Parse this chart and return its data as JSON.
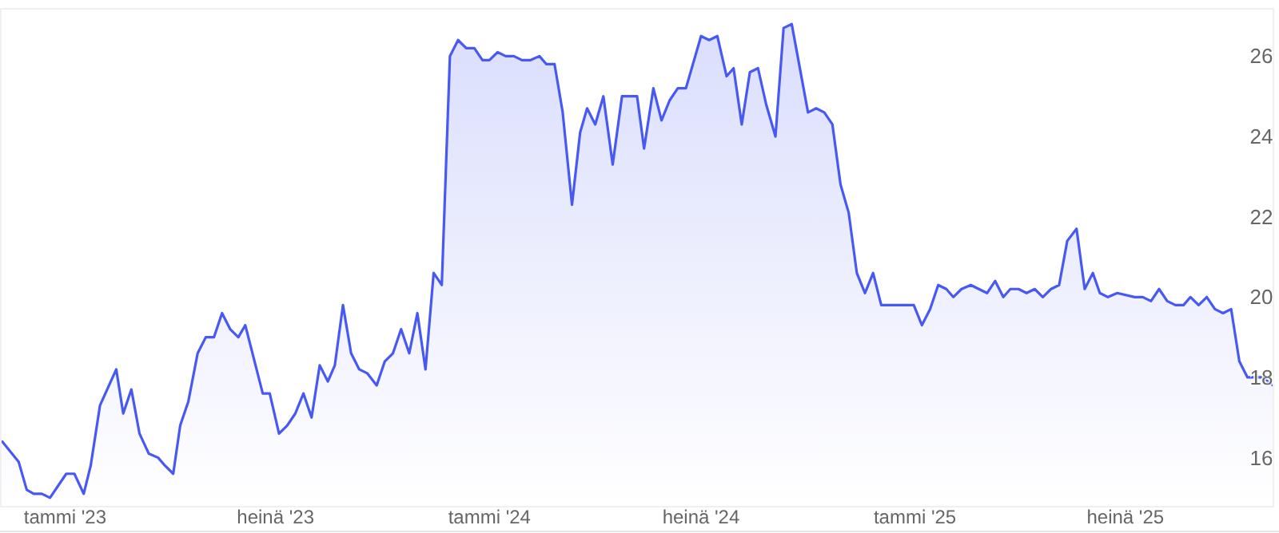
{
  "chart_data": {
    "type": "area",
    "x": [
      "2022-11-08",
      "2022-11-22",
      "2022-11-29",
      "2022-12-05",
      "2022-12-12",
      "2022-12-19",
      "2023-01-02",
      "2023-01-09",
      "2023-01-17",
      "2023-01-23",
      "2023-01-31",
      "2023-02-14",
      "2023-02-20",
      "2023-02-27",
      "2023-03-06",
      "2023-03-14",
      "2023-03-22",
      "2023-03-28",
      "2023-04-04",
      "2023-04-10",
      "2023-04-17",
      "2023-04-25",
      "2023-05-02",
      "2023-05-09",
      "2023-05-16",
      "2023-05-23",
      "2023-05-30",
      "2023-06-05",
      "2023-06-20",
      "2023-06-26",
      "2023-07-04",
      "2023-07-11",
      "2023-07-18",
      "2023-07-25",
      "2023-08-01",
      "2023-08-08",
      "2023-08-15",
      "2023-08-21",
      "2023-08-28",
      "2023-09-04",
      "2023-09-11",
      "2023-09-18",
      "2023-09-26",
      "2023-10-03",
      "2023-10-10",
      "2023-10-17",
      "2023-10-24",
      "2023-10-31",
      "2023-11-07",
      "2023-11-14",
      "2023-11-21",
      "2023-11-28",
      "2023-12-05",
      "2023-12-12",
      "2023-12-19",
      "2023-12-26",
      "2024-01-01",
      "2024-01-08",
      "2024-01-15",
      "2024-01-22",
      "2024-01-29",
      "2024-02-05",
      "2024-02-13",
      "2024-02-19",
      "2024-02-26",
      "2024-03-04",
      "2024-03-12",
      "2024-03-19",
      "2024-03-25",
      "2024-04-01",
      "2024-04-08",
      "2024-04-16",
      "2024-04-24",
      "2024-05-01",
      "2024-05-07",
      "2024-05-13",
      "2024-05-21",
      "2024-05-28",
      "2024-06-04",
      "2024-06-11",
      "2024-06-18",
      "2024-07-01",
      "2024-07-08",
      "2024-07-15",
      "2024-07-23",
      "2024-07-29",
      "2024-08-05",
      "2024-08-12",
      "2024-08-19",
      "2024-08-26",
      "2024-09-03",
      "2024-09-10",
      "2024-09-17",
      "2024-10-01",
      "2024-10-08",
      "2024-10-15",
      "2024-10-22",
      "2024-10-29",
      "2024-11-05",
      "2024-11-12",
      "2024-11-19",
      "2024-11-26",
      "2024-12-03",
      "2024-12-09",
      "2024-12-16",
      "2024-12-31",
      "2025-01-07",
      "2025-01-14",
      "2025-01-21",
      "2025-01-28",
      "2025-02-03",
      "2025-02-10",
      "2025-02-18",
      "2025-02-25",
      "2025-03-04",
      "2025-03-11",
      "2025-03-18",
      "2025-03-24",
      "2025-03-31",
      "2025-04-07",
      "2025-04-14",
      "2025-04-21",
      "2025-04-28",
      "2025-05-05",
      "2025-05-12",
      "2025-05-20",
      "2025-05-27",
      "2025-06-03",
      "2025-06-09",
      "2025-06-16",
      "2025-06-24",
      "2025-07-09",
      "2025-07-16",
      "2025-07-23",
      "2025-07-30",
      "2025-08-06",
      "2025-08-13",
      "2025-08-20",
      "2025-08-26",
      "2025-09-02",
      "2025-09-09",
      "2025-09-16",
      "2025-09-23",
      "2025-09-30",
      "2025-10-07",
      "2025-10-14",
      "2025-10-20",
      "2025-10-27",
      "2025-11-05"
    ],
    "series": [
      {
        "color": "#4759f2",
        "values": [
          16.4,
          15.9,
          15.2,
          15.1,
          15.1,
          15.0,
          15.6,
          15.6,
          15.1,
          15.8,
          17.3,
          18.2,
          17.1,
          17.7,
          16.6,
          16.1,
          16.0,
          15.8,
          15.6,
          16.8,
          17.4,
          18.6,
          19.0,
          19.0,
          19.6,
          19.2,
          19.0,
          19.3,
          17.6,
          17.6,
          16.6,
          16.8,
          17.1,
          17.6,
          17.0,
          18.3,
          17.9,
          18.3,
          19.8,
          18.6,
          18.2,
          18.1,
          17.8,
          18.4,
          18.6,
          19.2,
          18.6,
          19.6,
          18.2,
          20.6,
          20.3,
          26.0,
          26.4,
          26.2,
          26.2,
          25.9,
          25.9,
          26.1,
          26.0,
          26.0,
          25.9,
          25.9,
          26.0,
          25.8,
          25.8,
          24.6,
          22.3,
          24.1,
          24.7,
          24.3,
          25.0,
          23.3,
          25.0,
          25.0,
          25.0,
          23.7,
          25.2,
          24.4,
          24.9,
          25.2,
          25.2,
          26.5,
          26.4,
          26.5,
          25.5,
          25.7,
          24.3,
          25.6,
          25.7,
          24.8,
          24.0,
          26.7,
          26.8,
          24.6,
          24.7,
          24.6,
          24.3,
          22.8,
          22.1,
          20.6,
          20.1,
          20.6,
          19.8,
          19.8,
          19.8,
          19.8,
          19.3,
          19.7,
          20.3,
          20.2,
          20.0,
          20.2,
          20.3,
          20.2,
          20.1,
          20.4,
          20.0,
          20.2,
          20.2,
          20.1,
          20.2,
          20.0,
          20.2,
          20.3,
          21.4,
          21.7,
          20.2,
          20.6,
          20.1,
          20.0,
          20.1,
          20.0,
          20.0,
          19.9,
          20.2,
          19.9,
          19.8,
          19.8,
          20.0,
          19.8,
          20.0,
          19.7,
          19.6,
          19.7,
          18.4,
          18.0,
          18.0,
          18.0,
          17.8
        ]
      }
    ],
    "xlim": [
      "2022-11-06",
      "2025-11-06"
    ],
    "xticks": [
      {
        "value": "2023-01-01",
        "label": "tammi '23"
      },
      {
        "value": "2023-07-01",
        "label": "heinä '23"
      },
      {
        "value": "2024-01-01",
        "label": "tammi '24"
      },
      {
        "value": "2024-07-01",
        "label": "heinä '24"
      },
      {
        "value": "2025-01-01",
        "label": "tammi '25"
      },
      {
        "value": "2025-07-01",
        "label": "heinä '25"
      }
    ],
    "ylim": [
      14.8,
      27.2
    ],
    "yticks": [
      16,
      18,
      20,
      22,
      24,
      26
    ]
  }
}
